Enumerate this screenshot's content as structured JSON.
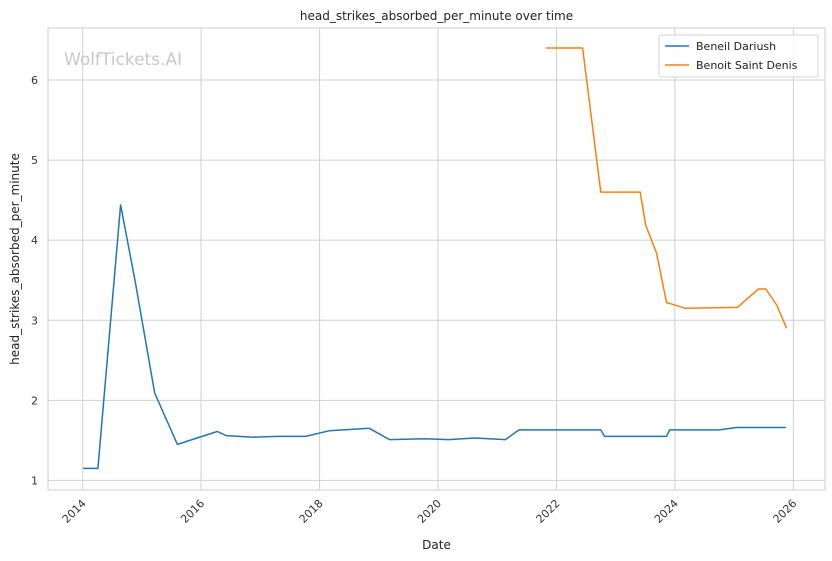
{
  "chart_data": {
    "type": "line",
    "title": "head_strikes_absorbed_per_minute over time",
    "xlabel": "Date",
    "ylabel": "head_strikes_absorbed_per_minute",
    "watermark": "WolfTickets.AI",
    "x_ticks": [
      "2014",
      "2016",
      "2018",
      "2020",
      "2022",
      "2024",
      "2026"
    ],
    "y_ticks": [
      "1",
      "2",
      "3",
      "4",
      "5",
      "6"
    ],
    "xlim": [
      "2013-06-01",
      "2026-07-15"
    ],
    "ylim": [
      0.88,
      6.65
    ],
    "grid": true,
    "legend_position": "top-right",
    "series": [
      {
        "name": "Beneil Dariush",
        "color": "#1f77b4",
        "points": [
          [
            "2014-01-04",
            1.15
          ],
          [
            "2014-04-05",
            1.15
          ],
          [
            "2014-08-23",
            4.44
          ],
          [
            "2014-11-22",
            3.47
          ],
          [
            "2015-03-21",
            2.09
          ],
          [
            "2015-08-08",
            1.45
          ],
          [
            "2016-04-10",
            1.61
          ],
          [
            "2016-06-04",
            1.56
          ],
          [
            "2016-11-19",
            1.54
          ],
          [
            "2017-04-15",
            1.55
          ],
          [
            "2017-10-07",
            1.55
          ],
          [
            "2018-03-03",
            1.62
          ],
          [
            "2018-11-03",
            1.65
          ],
          [
            "2019-03-09",
            1.51
          ],
          [
            "2019-10-12",
            1.52
          ],
          [
            "2020-03-07",
            1.51
          ],
          [
            "2020-08-15",
            1.53
          ],
          [
            "2021-02-20",
            1.51
          ],
          [
            "2021-05-15",
            1.63
          ],
          [
            "2022-03-19",
            1.63
          ],
          [
            "2022-10-01",
            1.63
          ],
          [
            "2022-10-25",
            1.55
          ],
          [
            "2023-06-10",
            1.55
          ],
          [
            "2023-11-10",
            1.55
          ],
          [
            "2023-12-01",
            1.63
          ],
          [
            "2024-03-15",
            1.63
          ],
          [
            "2024-10-01",
            1.63
          ],
          [
            "2025-01-15",
            1.66
          ],
          [
            "2025-06-15",
            1.66
          ],
          [
            "2025-11-15",
            1.66
          ]
        ]
      },
      {
        "name": "Benoit Saint Denis",
        "color": "#ff7f0e",
        "points": [
          [
            "2021-10-30",
            6.4
          ],
          [
            "2022-06-11",
            6.4
          ],
          [
            "2022-10-01",
            4.6
          ],
          [
            "2023-06-01",
            4.6
          ],
          [
            "2023-07-05",
            4.19
          ],
          [
            "2023-09-10",
            3.84
          ],
          [
            "2023-11-11",
            3.22
          ],
          [
            "2023-12-15",
            3.2
          ],
          [
            "2024-03-02",
            3.15
          ],
          [
            "2025-01-20",
            3.16
          ],
          [
            "2025-05-31",
            3.39
          ],
          [
            "2025-07-15",
            3.39
          ],
          [
            "2025-09-20",
            3.19
          ],
          [
            "2025-11-20",
            2.9
          ]
        ]
      }
    ]
  }
}
